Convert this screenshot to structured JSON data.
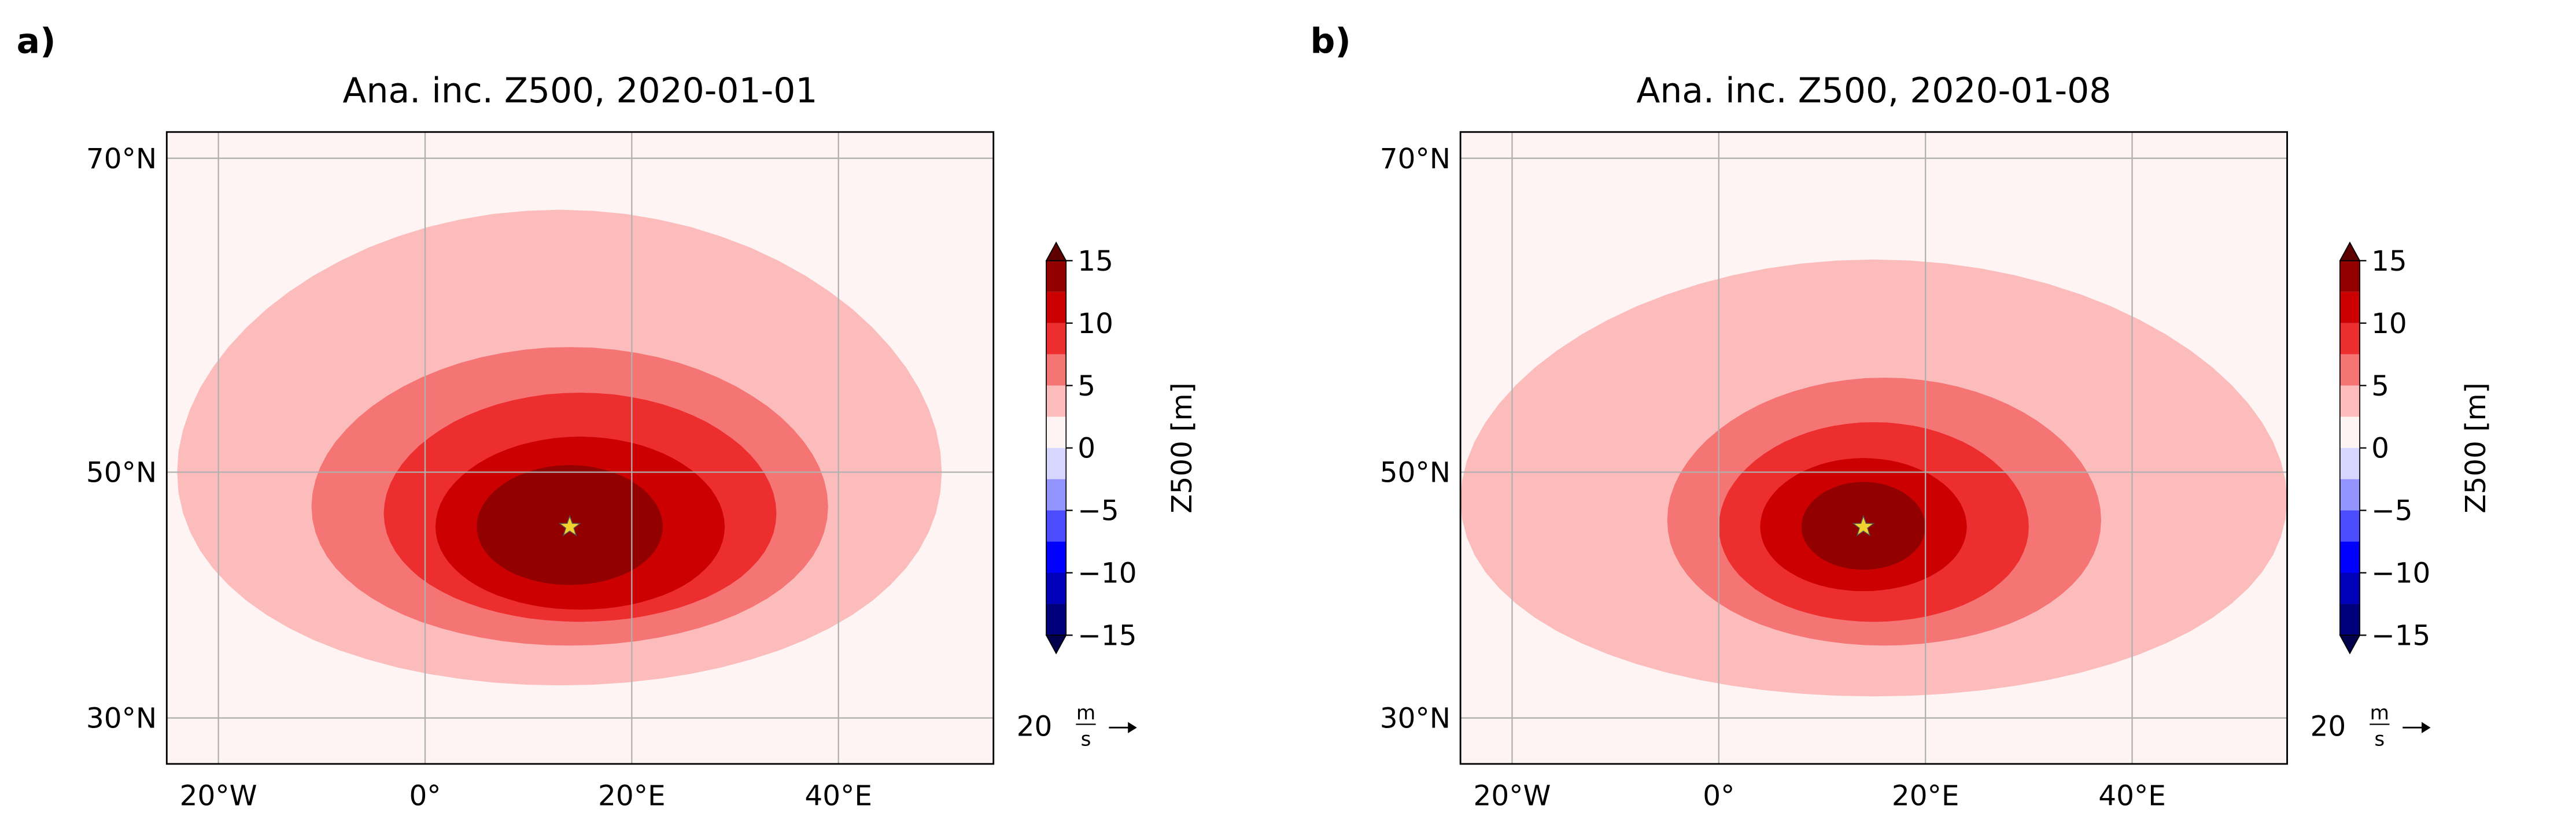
{
  "chart_data": [
    {
      "type": "contour_map",
      "panel_label": "a)",
      "title": "Ana. inc. Z500, 2020-01-01",
      "xlim": [
        -25,
        55
      ],
      "ylim": [
        25.5,
        71.5
      ],
      "xticks": [
        {
          "value": -20,
          "label": "20°W"
        },
        {
          "value": 0,
          "label": "0°"
        },
        {
          "value": 20,
          "label": "20°E"
        },
        {
          "value": 40,
          "label": "40°E"
        }
      ],
      "yticks": [
        {
          "value": 30,
          "label": "30°N"
        },
        {
          "value": 50,
          "label": "50°N"
        },
        {
          "value": 70,
          "label": "70°N"
        }
      ],
      "grid": true,
      "contours": [
        {
          "level": 2.5,
          "center": [
            13,
            50
          ],
          "radius": [
            37,
            17
          ]
        },
        {
          "level": 5,
          "center": [
            14,
            47.5
          ],
          "radius": [
            25,
            11
          ]
        },
        {
          "level": 7.5,
          "center": [
            15,
            47
          ],
          "radius": [
            19,
            8.5
          ]
        },
        {
          "level": 10,
          "center": [
            15,
            46
          ],
          "radius": [
            14,
            6.5
          ]
        },
        {
          "level": 12.5,
          "center": [
            14,
            46
          ],
          "radius": [
            9,
            4.5
          ]
        },
        {
          "level": 15,
          "center": [
            14,
            46
          ],
          "radius": [
            4,
            2
          ]
        }
      ],
      "marker": {
        "lon": 14,
        "lat": 46,
        "color": "#f2d22e"
      },
      "colorbar": {
        "label": "Z500 [m]",
        "clim": [
          -15,
          15
        ],
        "levels": [
          -15,
          -12.5,
          -10,
          -7.5,
          -5,
          -2.5,
          0,
          2.5,
          5,
          7.5,
          10,
          12.5,
          15
        ],
        "colors": [
          "#00007a",
          "#0000b8",
          "#0000ff",
          "#4c4cff",
          "#9494ff",
          "#d6d6ff",
          "#fff4f4",
          "#fcbcbc",
          "#f57474",
          "#ec2e2e",
          "#cc0000",
          "#920000"
        ],
        "extend_colors": [
          "#00004c",
          "#5e0000"
        ],
        "ticks": [
          {
            "value": -15,
            "label": "−15"
          },
          {
            "value": -10,
            "label": "−10"
          },
          {
            "value": -5,
            "label": "−5"
          },
          0,
          5,
          10,
          15
        ]
      },
      "quiver_key": {
        "value": 20,
        "unit_num": "m",
        "unit_den": "s"
      }
    },
    {
      "type": "contour_map",
      "panel_label": "b)",
      "title": "Ana. inc. Z500, 2020-01-08",
      "xlim": [
        -25,
        55
      ],
      "ylim": [
        25.5,
        71.5
      ],
      "xticks": [
        {
          "value": -20,
          "label": "20°W"
        },
        {
          "value": 0,
          "label": "0°"
        },
        {
          "value": 20,
          "label": "20°E"
        },
        {
          "value": 40,
          "label": "40°E"
        }
      ],
      "yticks": [
        {
          "value": 30,
          "label": "30°N"
        },
        {
          "value": 50,
          "label": "50°N"
        },
        {
          "value": 70,
          "label": "70°N"
        }
      ],
      "grid": true,
      "contours": [
        {
          "level": 2.5,
          "center": [
            15,
            48
          ],
          "radius": [
            40,
            16
          ]
        },
        {
          "level": 5,
          "center": [
            16,
            46.5
          ],
          "radius": [
            21,
            10
          ]
        },
        {
          "level": 7.5,
          "center": [
            15,
            46
          ],
          "radius": [
            15,
            7.5
          ]
        },
        {
          "level": 10,
          "center": [
            14,
            46
          ],
          "radius": [
            10,
            5
          ]
        },
        {
          "level": 12.5,
          "center": [
            14,
            46
          ],
          "radius": [
            6,
            3.3
          ]
        },
        {
          "level": 15,
          "center": [
            14,
            46
          ],
          "radius": [
            3,
            1.6
          ]
        }
      ],
      "marker": {
        "lon": 14,
        "lat": 46,
        "color": "#f2d22e"
      },
      "colorbar": {
        "label": "Z500 [m]",
        "clim": [
          -15,
          15
        ],
        "levels": [
          -15,
          -12.5,
          -10,
          -7.5,
          -5,
          -2.5,
          0,
          2.5,
          5,
          7.5,
          10,
          12.5,
          15
        ],
        "colors": [
          "#00007a",
          "#0000b8",
          "#0000ff",
          "#4c4cff",
          "#9494ff",
          "#d6d6ff",
          "#fff4f4",
          "#fcbcbc",
          "#f57474",
          "#ec2e2e",
          "#cc0000",
          "#920000"
        ],
        "extend_colors": [
          "#00004c",
          "#5e0000"
        ],
        "ticks": [
          {
            "value": -15,
            "label": "−15"
          },
          {
            "value": -10,
            "label": "−10"
          },
          {
            "value": -5,
            "label": "−5"
          },
          0,
          5,
          10,
          15
        ]
      },
      "quiver_key": {
        "value": 20,
        "unit_num": "m",
        "unit_den": "s"
      }
    }
  ]
}
